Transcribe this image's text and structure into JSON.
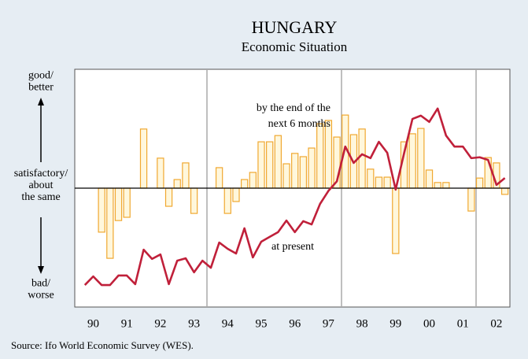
{
  "chart_data": {
    "type": "combo",
    "title": "HUNGARY",
    "subtitle": "Economic Situation",
    "source": "Source: Ifo World Economic Survey (WES).",
    "y_axis_labels": {
      "top": [
        "good/",
        "better"
      ],
      "middle": [
        "satisfactory/",
        "about",
        "the same"
      ],
      "bottom": [
        "bad/",
        "worse"
      ]
    },
    "xlim": [
      1989.95,
      2002.9
    ],
    "ylim": [
      1,
      9
    ],
    "baseline": 5,
    "xticks": [
      {
        "value": 1990.5,
        "label": "90"
      },
      {
        "value": 1991.5,
        "label": "91"
      },
      {
        "value": 1992.5,
        "label": "92"
      },
      {
        "value": 1993.5,
        "label": "93"
      },
      {
        "value": 1994.5,
        "label": "94"
      },
      {
        "value": 1995.5,
        "label": "95"
      },
      {
        "value": 1996.5,
        "label": "96"
      },
      {
        "value": 1997.5,
        "label": "97"
      },
      {
        "value": 1998.5,
        "label": "98"
      },
      {
        "value": 1999.5,
        "label": "99"
      },
      {
        "value": 2000.5,
        "label": "00"
      },
      {
        "value": 2001.5,
        "label": "01"
      },
      {
        "value": 2002.5,
        "label": "02"
      }
    ],
    "series": [
      {
        "type": "bar",
        "color": "#f0a830",
        "x": [
          1990.75,
          1991.0,
          1991.25,
          1991.5,
          1992.0,
          1992.5,
          1992.75,
          1993.0,
          1993.25,
          1993.5,
          1994.25,
          1994.5,
          1994.75,
          1995.0,
          1995.25,
          1995.5,
          1995.75,
          1996.0,
          1996.25,
          1996.5,
          1996.75,
          1997.0,
          1997.25,
          1997.5,
          1997.75,
          1998.0,
          1998.25,
          1998.5,
          1998.75,
          1999.0,
          1999.25,
          1999.5,
          1999.75,
          2000.0,
          2000.25,
          2000.5,
          2000.75,
          2001.0,
          2001.75,
          2002.0,
          2002.25,
          2002.5,
          2002.75
        ],
        "values": [
          3.52,
          2.64,
          3.91,
          4.02,
          6.99,
          6.01,
          4.39,
          5.29,
          5.85,
          4.15,
          5.69,
          4.15,
          4.55,
          5.29,
          5.53,
          6.56,
          6.56,
          6.77,
          5.82,
          6.17,
          6.06,
          6.35,
          7.17,
          7.28,
          6.72,
          7.46,
          6.8,
          6.99,
          5.64,
          5.37,
          5.37,
          2.8,
          6.56,
          6.83,
          7.01,
          5.61,
          5.19,
          5.19,
          4.23,
          5.34,
          6.03,
          5.85,
          4.79
        ]
      },
      {
        "type": "line",
        "color": "#c0203a",
        "x": [
          1990.25,
          1990.5,
          1990.75,
          1991.0,
          1991.25,
          1991.5,
          1991.75,
          1992.0,
          1992.25,
          1992.5,
          1992.75,
          1993.0,
          1993.25,
          1993.5,
          1993.75,
          1994.0,
          1994.25,
          1994.5,
          1994.75,
          1995.0,
          1995.25,
          1995.5,
          1995.75,
          1996.0,
          1996.25,
          1996.5,
          1996.75,
          1997.0,
          1997.25,
          1997.5,
          1997.75,
          1998.0,
          1998.25,
          1998.5,
          1998.75,
          1999.0,
          1999.25,
          1999.5,
          1999.75,
          2000.0,
          2000.25,
          2000.5,
          2000.75,
          2001.0,
          2001.25,
          2001.5,
          2001.75,
          2002.0,
          2002.25,
          2002.5,
          2002.75
        ],
        "values": [
          1.74,
          2.03,
          1.74,
          1.74,
          2.06,
          2.06,
          1.77,
          2.93,
          2.62,
          2.77,
          1.77,
          2.56,
          2.64,
          2.17,
          2.56,
          2.32,
          3.17,
          2.96,
          2.8,
          3.65,
          2.67,
          3.2,
          3.36,
          3.52,
          3.91,
          3.52,
          3.89,
          3.78,
          4.47,
          4.91,
          5.23,
          6.4,
          5.85,
          6.14,
          6.01,
          6.56,
          6.19,
          4.95,
          6.17,
          7.33,
          7.44,
          7.23,
          7.68,
          6.77,
          6.4,
          6.4,
          6.01,
          6.04,
          5.95,
          5.11,
          5.34
        ]
      }
    ],
    "annotations": [
      {
        "lines": [
          "by the end of the",
          "next 6 months"
        ]
      },
      {
        "lines": [
          "at present"
        ]
      }
    ]
  }
}
